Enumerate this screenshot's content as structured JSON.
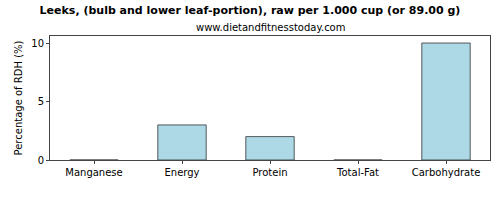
{
  "chart_data": {
    "type": "bar",
    "title": "Leeks, (bulb and lower leaf-portion), raw per 1.000 cup (or 89.00 g)",
    "subtitle": "www.dietandfitnesstoday.com",
    "y_label": "Percentage of RDH (%)",
    "categories": [
      "Manganese",
      "Energy",
      "Protein",
      "Total-Fat",
      "Carbohydrate"
    ],
    "values": [
      0,
      3,
      2,
      0,
      10
    ],
    "color": "#add8e6",
    "ylim": [
      0,
      10.6
    ],
    "yticks": [
      0,
      5,
      10
    ],
    "grid": false
  }
}
